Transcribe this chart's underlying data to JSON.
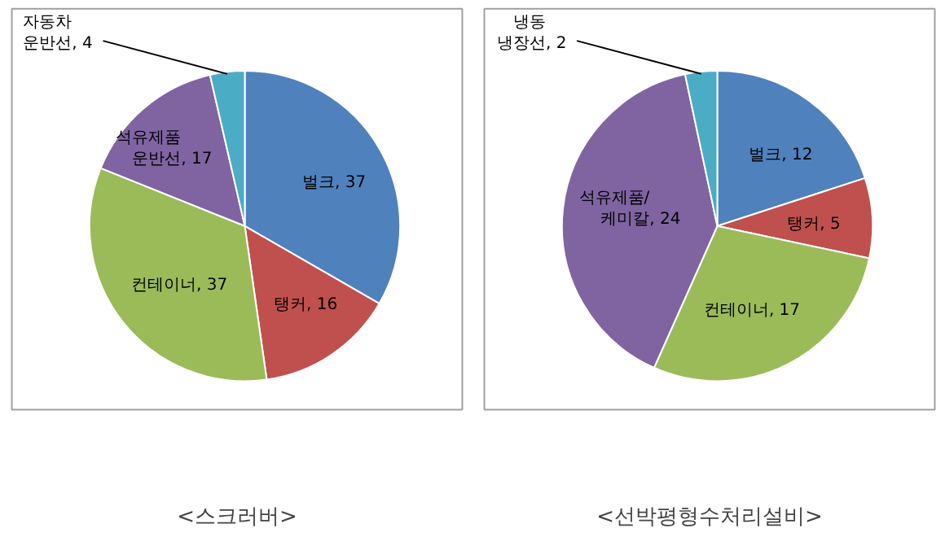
{
  "chart_data": [
    {
      "type": "pie",
      "title": "<스크러버>",
      "categories": [
        "벌크",
        "탱커",
        "컨테이너",
        "석유제품\n운반선",
        "자동차\n운반선"
      ],
      "values": [
        37,
        16,
        37,
        17,
        4
      ],
      "colors": [
        "#4f81bd",
        "#c0504d",
        "#9bbb59",
        "#8064a2",
        "#4bacc6"
      ],
      "value_labels": [
        ", 37",
        ", 16",
        ", 37",
        ", 17",
        ", 4"
      ]
    },
    {
      "type": "pie",
      "title": "<선박평형수처리설비>",
      "categories": [
        "벌크",
        "탱커",
        "컨테이너",
        "석유제품/\n케미칼",
        "냉동\n냉장선"
      ],
      "values": [
        12,
        5,
        17,
        24,
        2
      ],
      "colors": [
        "#4f81bd",
        "#c0504d",
        "#9bbb59",
        "#8064a2",
        "#4bacc6"
      ],
      "value_labels": [
        ", 12",
        ", 5",
        ", 17",
        ", 24",
        ", 2"
      ]
    }
  ]
}
